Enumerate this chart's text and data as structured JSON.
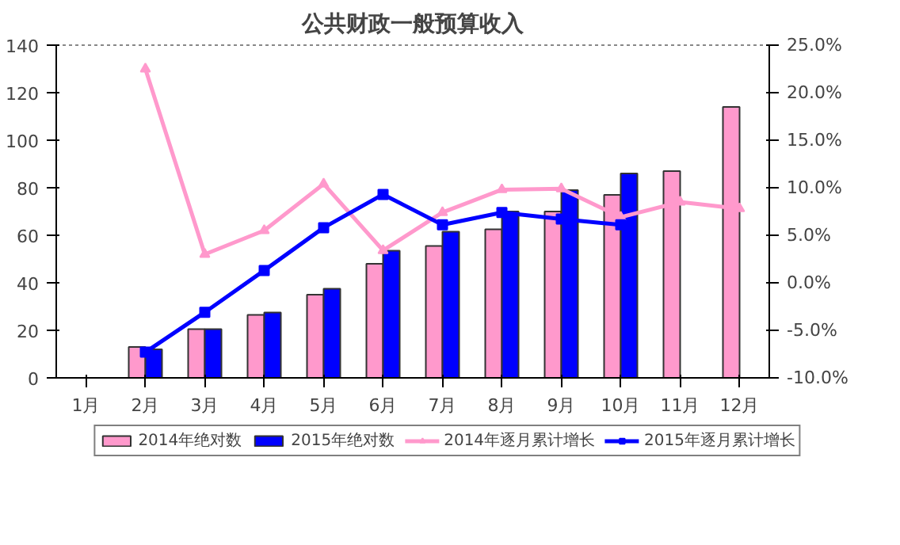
{
  "chart_data": {
    "type": "bar",
    "title": "公共财政一般预算收入",
    "categories": [
      "1月",
      "2月",
      "3月",
      "4月",
      "5月",
      "6月",
      "7月",
      "8月",
      "9月",
      "10月",
      "11月",
      "12月"
    ],
    "series": [
      {
        "name": "2014年绝对数",
        "color": "#ff99cc",
        "values": [
          null,
          13,
          20.5,
          26.5,
          35,
          48,
          55.5,
          62.5,
          70,
          77,
          87,
          114
        ]
      },
      {
        "name": "2015年绝对数",
        "color": "#0000ff",
        "values": [
          null,
          12,
          20.5,
          27.5,
          37.5,
          53.5,
          61.5,
          70,
          79,
          86,
          null,
          null
        ]
      },
      {
        "name": "2014年逐月累计增长",
        "type": "line",
        "axis": "y2",
        "marker": "triangle",
        "color": "#ff99cc",
        "values": [
          null,
          22.5,
          3.0,
          5.5,
          10.4,
          3.4,
          7.4,
          9.8,
          9.9,
          6.9,
          8.5,
          7.8
        ]
      },
      {
        "name": "2015年逐月累计增长",
        "type": "line",
        "axis": "y2",
        "marker": "square",
        "color": "#0000ff",
        "values": [
          null,
          -7.3,
          -3.1,
          1.3,
          5.8,
          9.3,
          6.1,
          7.4,
          6.7,
          6.1,
          null,
          null
        ]
      }
    ],
    "ylim": [
      0,
      140
    ],
    "yticks": [
      0,
      20,
      40,
      60,
      80,
      100,
      120,
      140
    ],
    "y2lim": [
      -10,
      25
    ],
    "y2ticks": [
      {
        "value": -10,
        "label": "-10.0%"
      },
      {
        "value": -5,
        "label": "-5.0%"
      },
      {
        "value": 0,
        "label": "0.0%"
      },
      {
        "value": 5,
        "label": "5.0%"
      },
      {
        "value": 10,
        "label": "10.0%"
      },
      {
        "value": 15,
        "label": "15.0%"
      },
      {
        "value": 20,
        "label": "20.0%"
      },
      {
        "value": 25,
        "label": "25.0%"
      }
    ],
    "grid": false,
    "legend": "bottom"
  }
}
